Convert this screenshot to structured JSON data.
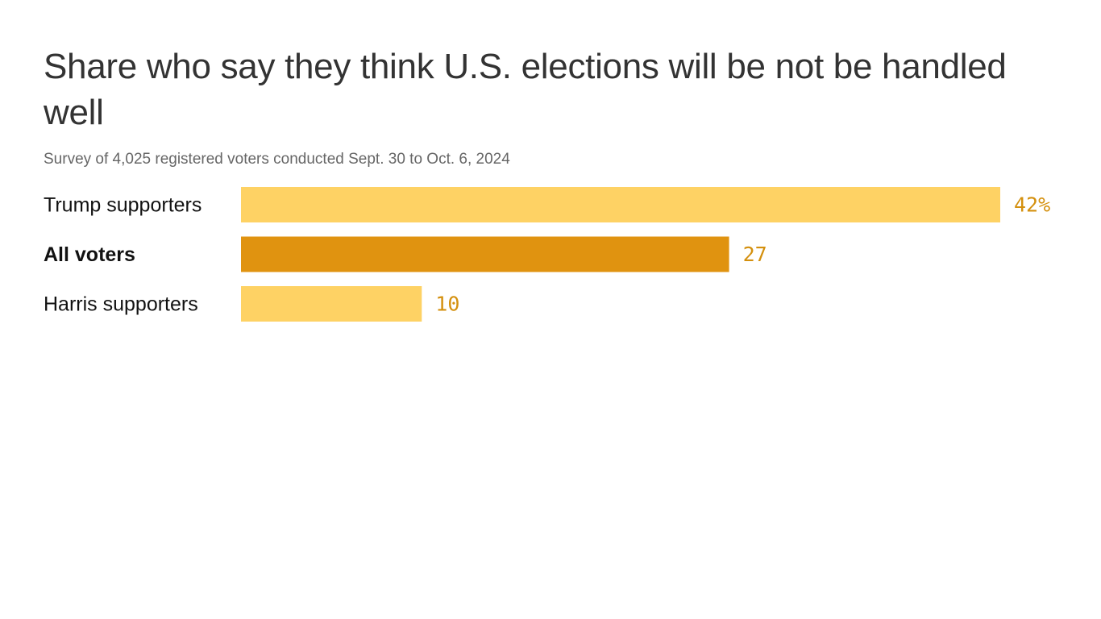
{
  "chart_data": {
    "type": "bar",
    "orientation": "horizontal",
    "title": "Share who say they think U.S. elections will be not be handled well",
    "subtitle": "Survey of 4,025 registered voters conducted Sept. 30 to Oct. 6, 2024",
    "categories": [
      "Trump supporters",
      "All voters",
      "Harris supporters"
    ],
    "values": [
      42,
      27,
      10
    ],
    "value_labels": [
      "42%",
      "27",
      "10"
    ],
    "highlight": [
      false,
      true,
      false
    ],
    "xlim": [
      0,
      42
    ],
    "grid": false,
    "xlabel": "",
    "ylabel": ""
  },
  "colors": {
    "bar": "#FED264",
    "bar_highlight": "#E09310",
    "value_text": "#D4900E",
    "title_text": "#333333",
    "subtitle_text": "#666666",
    "category_text": "#111111"
  }
}
